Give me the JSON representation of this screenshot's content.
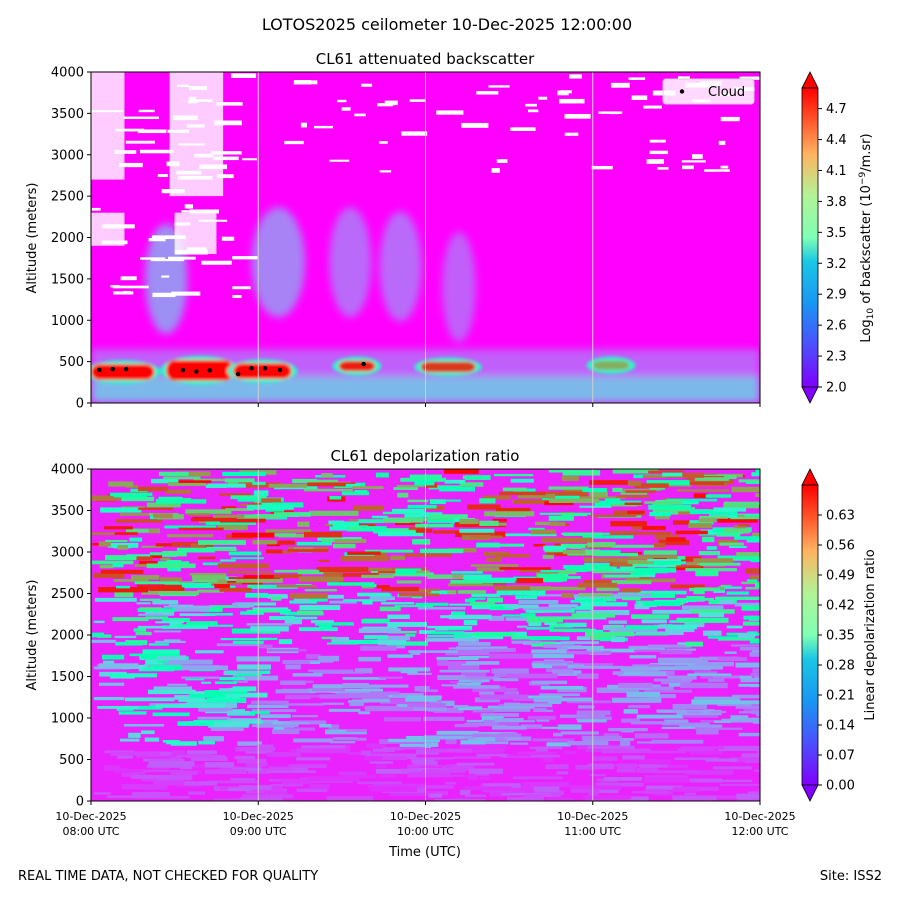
{
  "suptitle": "LOTOS2025 ceilometer 10-Dec-2025 12:00:00",
  "footer": {
    "left": "REAL TIME DATA, NOT CHECKED FOR QUALITY",
    "right": "Site: ISS2"
  },
  "chart_data": [
    {
      "type": "heatmap",
      "title": "CL61 attenuated backscatter",
      "ylabel": "Altitude (meters)",
      "xlabel": "",
      "xlim_hours": [
        8,
        12
      ],
      "ylim": [
        0,
        4000
      ],
      "yticks": [
        "0",
        "500",
        "1000",
        "1500",
        "2000",
        "2500",
        "3000",
        "3500",
        "4000"
      ],
      "xticks_hours": [
        8,
        9,
        10,
        11,
        12
      ],
      "colorbar": {
        "label": "Log10 of backscatter (10^-9/m.sr)",
        "label_pre": "Log",
        "label_sub": "10",
        "label_mid": " of backscatter (10",
        "label_sup": "−9",
        "label_post": "/m.sr)",
        "range": [
          2.0,
          4.9
        ],
        "ticks": [
          "2.0",
          "2.3",
          "2.6",
          "2.9",
          "3.2",
          "3.5",
          "3.8",
          "4.1",
          "4.4",
          "4.7"
        ],
        "extend": "both",
        "colormap": "rainbow"
      },
      "legend": {
        "label": "Cloud",
        "placement": "top-right"
      },
      "cloud_points": [
        {
          "t": 8.05,
          "alt": 400
        },
        {
          "t": 8.13,
          "alt": 410
        },
        {
          "t": 8.21,
          "alt": 410
        },
        {
          "t": 8.55,
          "alt": 400
        },
        {
          "t": 8.63,
          "alt": 380
        },
        {
          "t": 8.71,
          "alt": 395
        },
        {
          "t": 8.88,
          "alt": 350
        },
        {
          "t": 8.96,
          "alt": 420
        },
        {
          "t": 9.04,
          "alt": 420
        },
        {
          "t": 9.13,
          "alt": 400
        },
        {
          "t": 9.63,
          "alt": 470
        }
      ],
      "cloud_layers": [
        {
          "t0": 8.0,
          "t1": 8.38,
          "alt0": 280,
          "alt1": 470,
          "value": 5.0
        },
        {
          "t0": 8.45,
          "t1": 8.85,
          "alt0": 270,
          "alt1": 520,
          "value": 5.0
        },
        {
          "t0": 8.85,
          "t1": 9.2,
          "alt0": 290,
          "alt1": 480,
          "value": 4.9
        },
        {
          "t0": 9.48,
          "t1": 9.7,
          "alt0": 380,
          "alt1": 510,
          "value": 4.8
        },
        {
          "t0": 9.97,
          "t1": 10.3,
          "alt0": 370,
          "alt1": 500,
          "value": 4.7
        },
        {
          "t0": 11.0,
          "t1": 11.22,
          "alt0": 400,
          "alt1": 510,
          "value": 4.2
        }
      ]
    },
    {
      "type": "heatmap",
      "title": "CL61 depolarization ratio",
      "ylabel": "Altitude (meters)",
      "xlabel": "Time (UTC)",
      "xlim_hours": [
        8,
        12
      ],
      "ylim": [
        0,
        4000
      ],
      "yticks": [
        "0",
        "500",
        "1000",
        "1500",
        "2000",
        "2500",
        "3000",
        "3500",
        "4000"
      ],
      "xticks_hours": [
        8,
        9,
        10,
        11,
        12
      ],
      "xtick_labels": [
        {
          "date": "10-Dec-2025",
          "time": "08:00 UTC"
        },
        {
          "date": "10-Dec-2025",
          "time": "09:00 UTC"
        },
        {
          "date": "10-Dec-2025",
          "time": "10:00 UTC"
        },
        {
          "date": "10-Dec-2025",
          "time": "11:00 UTC"
        },
        {
          "date": "10-Dec-2025",
          "time": "12:00 UTC"
        }
      ],
      "colorbar": {
        "label": "Linear depolarization ratio",
        "range": [
          0.0,
          0.7
        ],
        "ticks": [
          "0.00",
          "0.07",
          "0.14",
          "0.21",
          "0.28",
          "0.35",
          "0.42",
          "0.49",
          "0.56",
          "0.63"
        ],
        "extend": "both",
        "colormap": "rainbow"
      }
    }
  ]
}
